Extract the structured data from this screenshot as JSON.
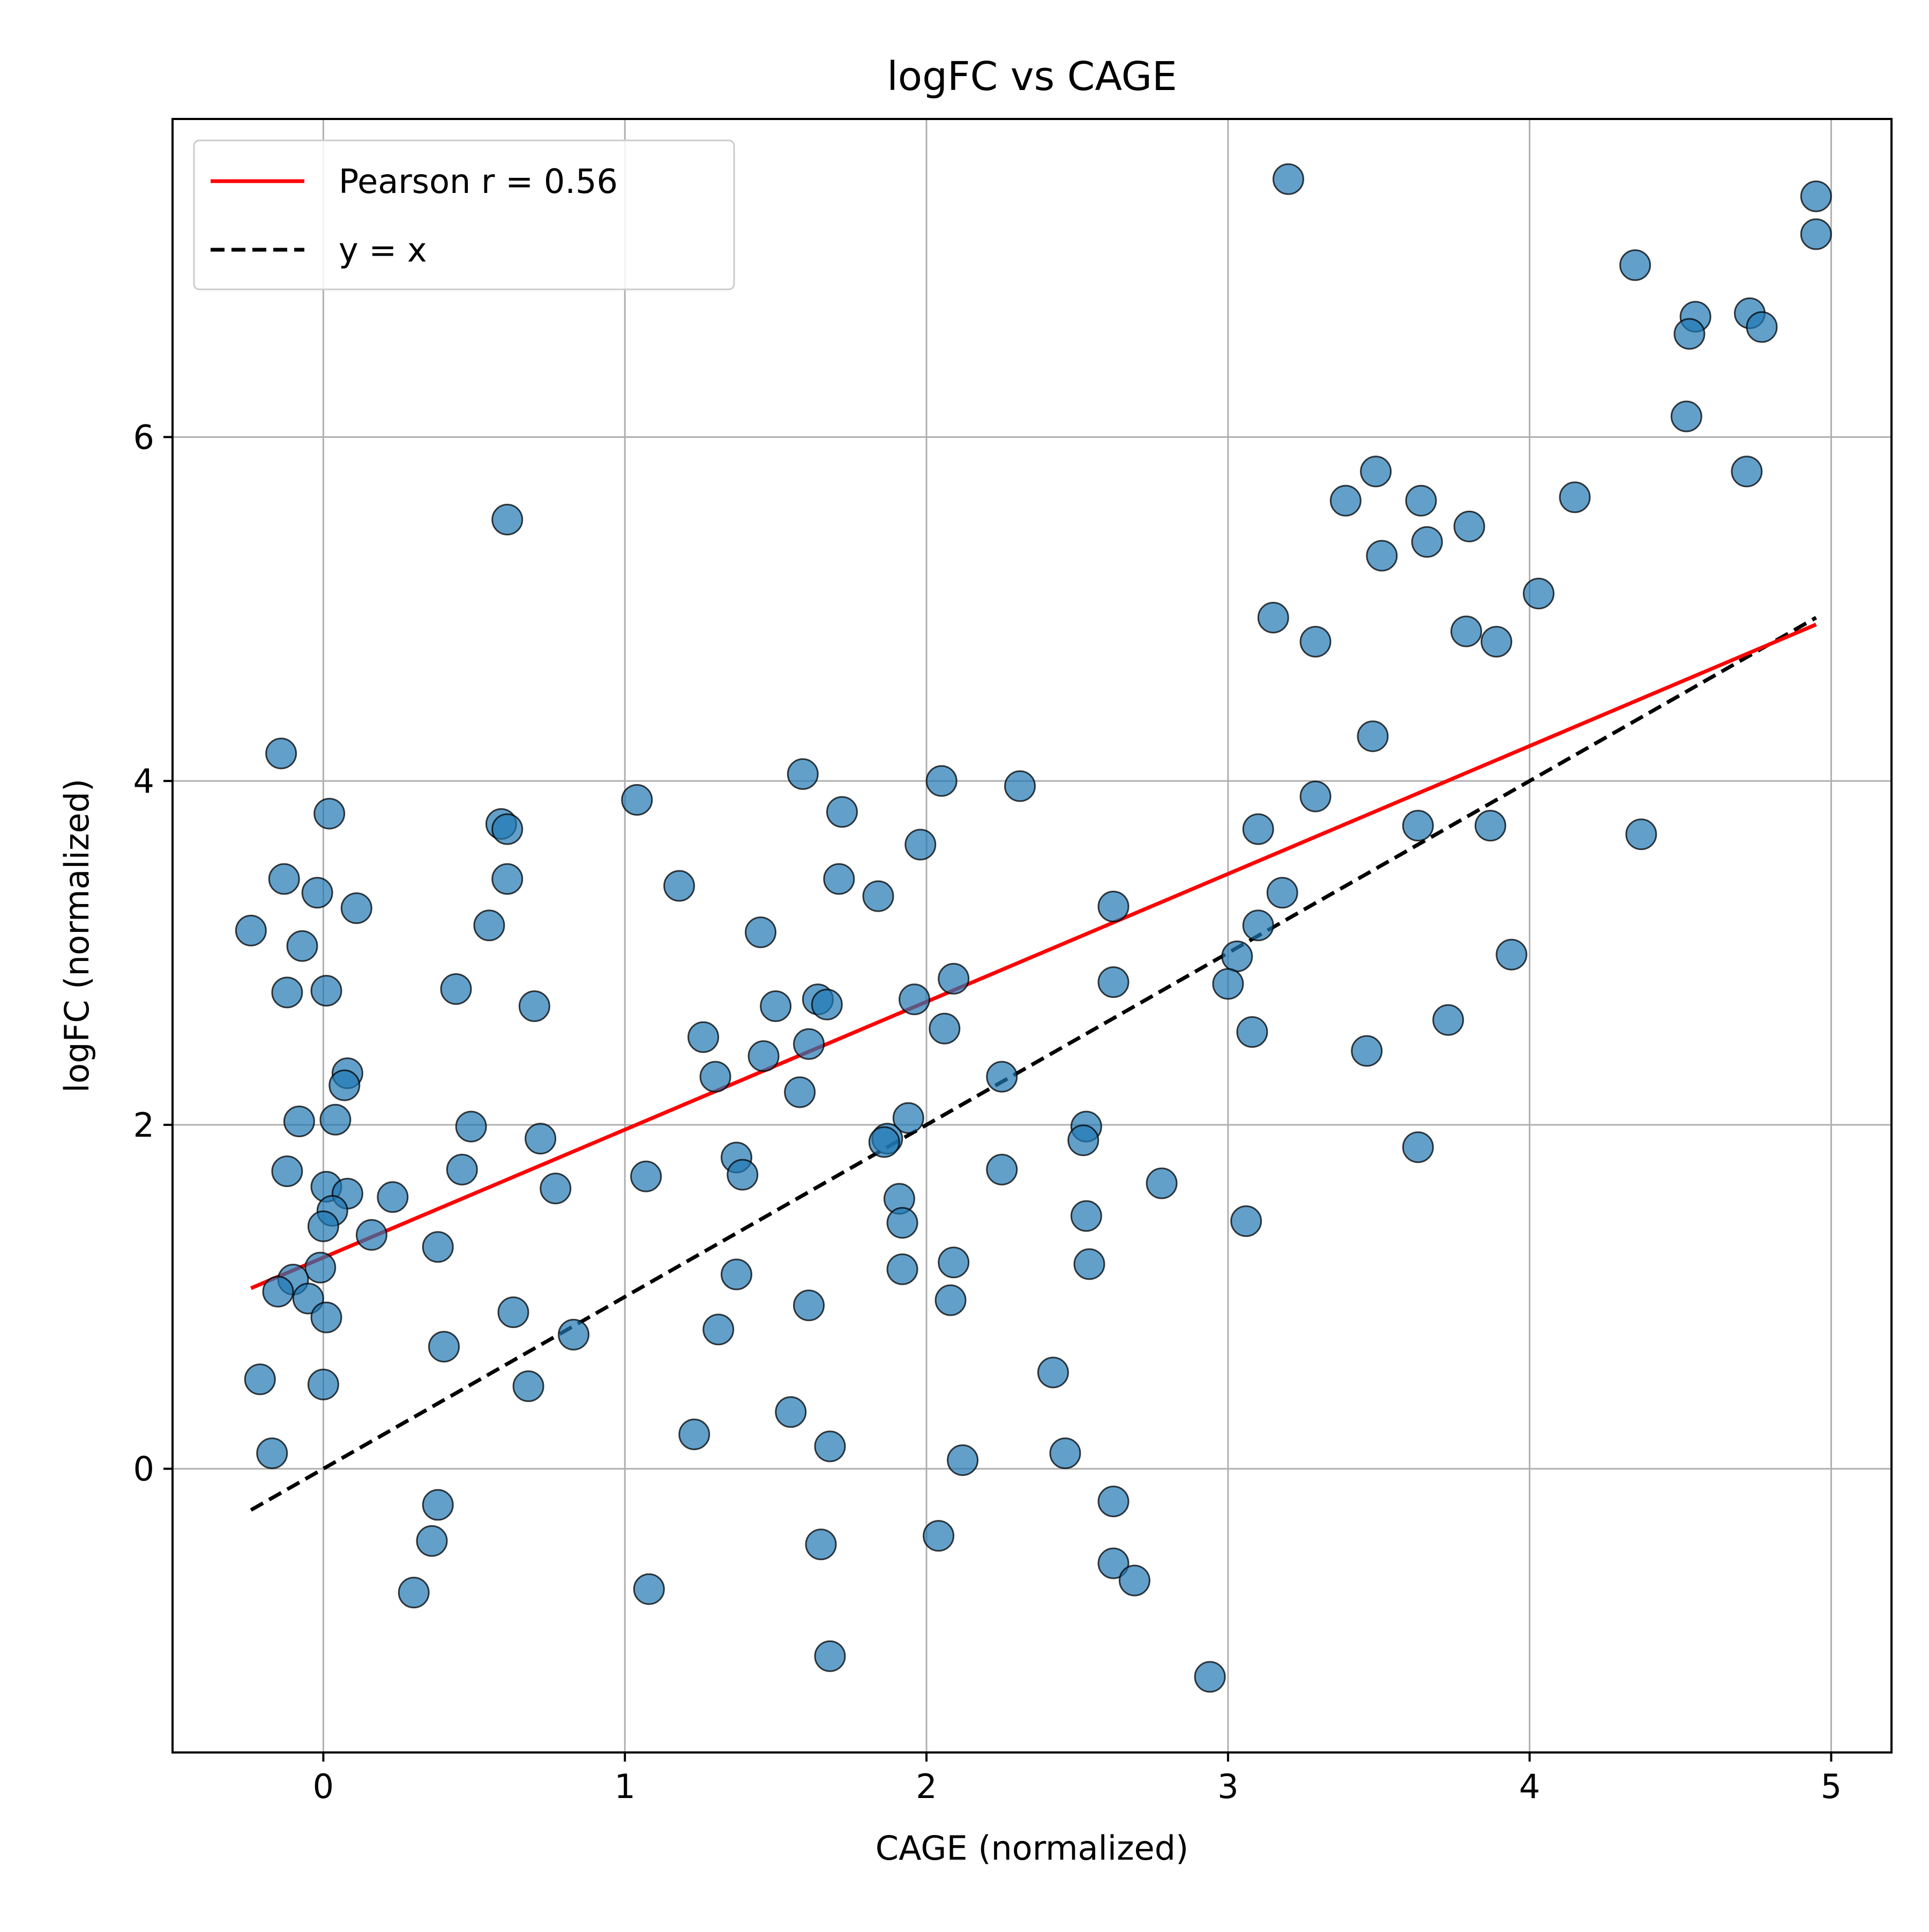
{
  "chart_data": {
    "type": "scatter",
    "title": "logFC vs CAGE",
    "xlabel": "CAGE (normalized)",
    "ylabel": "logFC (normalized)",
    "xlim": [
      -0.5,
      5.2
    ],
    "ylim": [
      -1.65,
      7.85
    ],
    "xticks": [
      0,
      1,
      2,
      3,
      4,
      5
    ],
    "xtick_labels": [
      "0",
      "1",
      "2",
      "3",
      "4",
      "5"
    ],
    "yticks": [
      0,
      2,
      4,
      6
    ],
    "ytick_labels": [
      "0",
      "2",
      "4",
      "6"
    ],
    "grid": true,
    "legend_position": "top-left",
    "legend": [
      {
        "label": "Pearson r = 0.56",
        "color": "#ff0000",
        "style": "solid"
      },
      {
        "label": "y = x",
        "color": "#000000",
        "style": "dashed"
      }
    ],
    "colors": {
      "points": "#1f77b4",
      "point_edge": "#000000",
      "fit": "#ff0000",
      "identity": "#000000",
      "grid": "#b0b0b0"
    },
    "fit_line": {
      "x": [
        -0.24,
        4.95
      ],
      "y": [
        1.05,
        4.91
      ]
    },
    "identity_line": {
      "x": [
        -0.24,
        4.95
      ],
      "y": [
        -0.24,
        4.95
      ]
    },
    "points": [
      [
        3.2,
        7.5
      ],
      [
        4.95,
        7.4
      ],
      [
        4.95,
        7.18
      ],
      [
        4.35,
        7.0
      ],
      [
        4.73,
        6.72
      ],
      [
        4.55,
        6.7
      ],
      [
        4.77,
        6.64
      ],
      [
        4.53,
        6.6
      ],
      [
        4.52,
        6.12
      ],
      [
        4.72,
        5.8
      ],
      [
        3.49,
        5.8
      ],
      [
        3.39,
        5.63
      ],
      [
        3.64,
        5.63
      ],
      [
        4.15,
        5.65
      ],
      [
        3.8,
        5.48
      ],
      [
        3.66,
        5.39
      ],
      [
        3.51,
        5.31
      ],
      [
        4.03,
        5.09
      ],
      [
        3.15,
        4.95
      ],
      [
        3.29,
        4.81
      ],
      [
        3.79,
        4.87
      ],
      [
        3.89,
        4.81
      ],
      [
        3.48,
        4.26
      ],
      [
        3.29,
        3.91
      ],
      [
        3.1,
        3.72
      ],
      [
        3.63,
        3.74
      ],
      [
        3.87,
        3.74
      ],
      [
        4.37,
        3.69
      ],
      [
        3.18,
        3.35
      ],
      [
        3.1,
        3.16
      ],
      [
        3.03,
        2.98
      ],
      [
        3.94,
        2.99
      ],
      [
        3.0,
        2.82
      ],
      [
        3.73,
        2.61
      ],
      [
        3.08,
        2.54
      ],
      [
        3.46,
        2.43
      ],
      [
        3.63,
        1.87
      ],
      [
        3.06,
        1.44
      ],
      [
        2.31,
        3.97
      ],
      [
        2.05,
        4.0
      ],
      [
        1.98,
        3.63
      ],
      [
        2.62,
        3.27
      ],
      [
        2.62,
        2.83
      ],
      [
        2.09,
        2.85
      ],
      [
        1.96,
        2.73
      ],
      [
        2.06,
        2.56
      ],
      [
        2.25,
        2.28
      ],
      [
        1.94,
        2.04
      ],
      [
        1.87,
        1.92
      ],
      [
        1.86,
        1.9
      ],
      [
        2.25,
        1.74
      ],
      [
        2.53,
        1.99
      ],
      [
        2.52,
        1.91
      ],
      [
        2.78,
        1.66
      ],
      [
        1.91,
        1.57
      ],
      [
        1.92,
        1.43
      ],
      [
        2.53,
        1.47
      ],
      [
        2.54,
        1.19
      ],
      [
        1.92,
        1.16
      ],
      [
        2.09,
        1.2
      ],
      [
        2.08,
        0.98
      ],
      [
        2.42,
        0.56
      ],
      [
        2.46,
        0.09
      ],
      [
        2.12,
        0.05
      ],
      [
        2.04,
        -0.39
      ],
      [
        2.62,
        -0.19
      ],
      [
        2.62,
        -0.55
      ],
      [
        2.69,
        -0.65
      ],
      [
        2.94,
        -1.21
      ],
      [
        1.59,
        4.04
      ],
      [
        1.72,
        3.82
      ],
      [
        1.71,
        3.43
      ],
      [
        1.84,
        3.33
      ],
      [
        1.45,
        3.12
      ],
      [
        1.5,
        2.69
      ],
      [
        1.64,
        2.73
      ],
      [
        1.67,
        2.7
      ],
      [
        1.61,
        2.47
      ],
      [
        1.46,
        2.4
      ],
      [
        1.58,
        2.19
      ],
      [
        1.26,
        2.51
      ],
      [
        1.3,
        2.28
      ],
      [
        1.37,
        1.81
      ],
      [
        1.39,
        1.71
      ],
      [
        1.37,
        1.13
      ],
      [
        1.31,
        0.81
      ],
      [
        1.61,
        0.95
      ],
      [
        1.55,
        0.33
      ],
      [
        1.23,
        0.2
      ],
      [
        1.68,
        0.13
      ],
      [
        1.65,
        -0.44
      ],
      [
        1.68,
        -1.09
      ],
      [
        1.04,
        3.89
      ],
      [
        1.18,
        3.39
      ],
      [
        1.07,
        1.7
      ],
      [
        1.08,
        -0.7
      ],
      [
        0.59,
        3.75
      ],
      [
        0.61,
        3.72
      ],
      [
        0.61,
        3.43
      ],
      [
        0.55,
        3.16
      ],
      [
        0.61,
        5.52
      ],
      [
        0.44,
        2.79
      ],
      [
        0.7,
        2.69
      ],
      [
        0.49,
        1.99
      ],
      [
        0.46,
        1.74
      ],
      [
        0.72,
        1.92
      ],
      [
        0.77,
        1.63
      ],
      [
        0.38,
        1.29
      ],
      [
        0.63,
        0.91
      ],
      [
        0.83,
        0.78
      ],
      [
        0.4,
        0.71
      ],
      [
        0.68,
        0.48
      ],
      [
        0.38,
        -0.21
      ],
      [
        0.36,
        -0.42
      ],
      [
        0.3,
        -0.72
      ],
      [
        -0.14,
        4.16
      ],
      [
        0.02,
        3.81
      ],
      [
        -0.13,
        3.43
      ],
      [
        -0.02,
        3.35
      ],
      [
        0.11,
        3.26
      ],
      [
        -0.24,
        3.13
      ],
      [
        -0.07,
        3.04
      ],
      [
        -0.12,
        2.77
      ],
      [
        0.01,
        2.78
      ],
      [
        0.08,
        2.3
      ],
      [
        0.07,
        2.23
      ],
      [
        -0.08,
        2.02
      ],
      [
        0.04,
        2.03
      ],
      [
        -0.12,
        1.73
      ],
      [
        0.23,
        1.58
      ],
      [
        0.01,
        1.64
      ],
      [
        0.08,
        1.6
      ],
      [
        0.03,
        1.5
      ],
      [
        0.16,
        1.36
      ],
      [
        0.0,
        1.41
      ],
      [
        -0.01,
        1.17
      ],
      [
        -0.1,
        1.1
      ],
      [
        -0.15,
        1.03
      ],
      [
        -0.05,
        0.99
      ],
      [
        0.01,
        0.88
      ],
      [
        -0.21,
        0.52
      ],
      [
        0.0,
        0.49
      ],
      [
        -0.17,
        0.09
      ]
    ]
  }
}
